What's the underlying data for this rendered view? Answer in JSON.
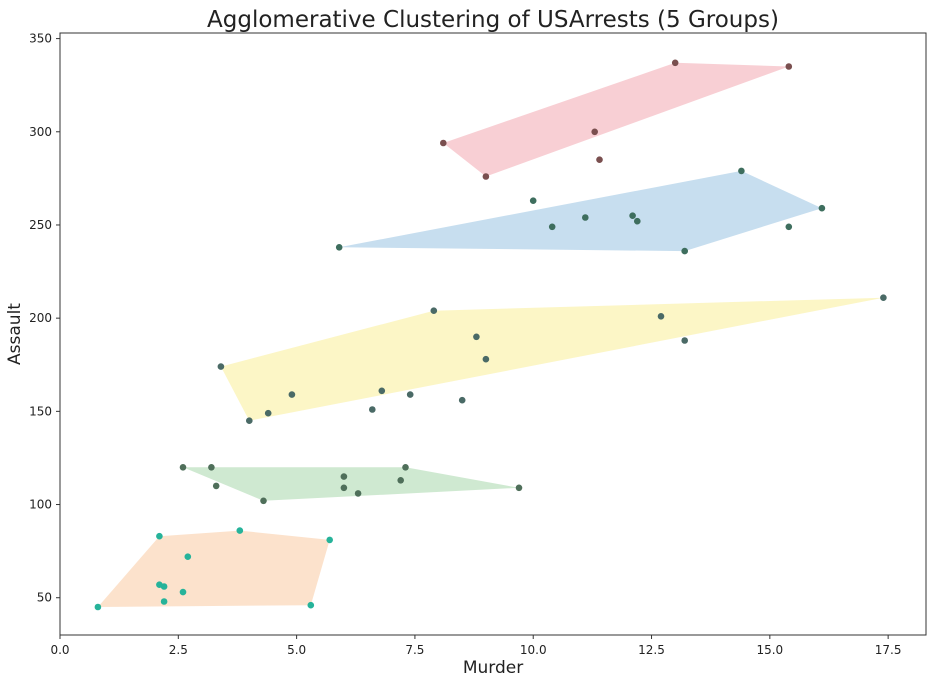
{
  "chart_data": {
    "type": "scatter",
    "title": "Agglomerative Clustering of USArrests (5 Groups)",
    "xlabel": "Murder",
    "ylabel": "Assault",
    "xlim": [
      0,
      18.3
    ],
    "ylim": [
      30,
      353
    ],
    "xticks": [
      0.0,
      2.5,
      5.0,
      7.5,
      10.0,
      12.5,
      15.0,
      17.5
    ],
    "xtick_labels": [
      "0.0",
      "2.5",
      "5.0",
      "7.5",
      "10.0",
      "12.5",
      "15.0",
      "17.5"
    ],
    "yticks": [
      50,
      100,
      150,
      200,
      250,
      300,
      350
    ],
    "ytick_labels": [
      "50",
      "100",
      "150",
      "200",
      "250",
      "300",
      "350"
    ],
    "grid": false,
    "hulls": [
      {
        "color": "#f4b6bd",
        "points": [
          [
            8.1,
            294
          ],
          [
            13.0,
            337
          ],
          [
            15.4,
            335
          ],
          [
            9.0,
            276
          ]
        ]
      },
      {
        "color": "#a9cce6",
        "points": [
          [
            5.9,
            238
          ],
          [
            14.4,
            279
          ],
          [
            16.1,
            259
          ],
          [
            13.2,
            236
          ]
        ]
      },
      {
        "color": "#fbf1a8",
        "points": [
          [
            3.4,
            174
          ],
          [
            7.9,
            204
          ],
          [
            17.4,
            211
          ],
          [
            4.0,
            145
          ]
        ]
      },
      {
        "color": "#b5ddb8",
        "points": [
          [
            2.6,
            120
          ],
          [
            7.3,
            120
          ],
          [
            9.7,
            109
          ],
          [
            4.3,
            102
          ]
        ]
      },
      {
        "color": "#fbd3b0",
        "points": [
          [
            2.1,
            83
          ],
          [
            3.8,
            86
          ],
          [
            5.7,
            81
          ],
          [
            5.3,
            46
          ],
          [
            0.8,
            45
          ]
        ]
      }
    ],
    "series": [
      {
        "color": "#7a4f4f",
        "points": [
          [
            13.0,
            337
          ],
          [
            15.4,
            335
          ],
          [
            11.3,
            300
          ],
          [
            8.1,
            294
          ],
          [
            11.4,
            285
          ],
          [
            9.0,
            276
          ]
        ]
      },
      {
        "color": "#3e6e5e",
        "points": [
          [
            14.4,
            279
          ],
          [
            10.0,
            263
          ],
          [
            16.1,
            259
          ],
          [
            11.1,
            254
          ],
          [
            12.1,
            255
          ],
          [
            12.2,
            252
          ],
          [
            10.4,
            249
          ],
          [
            15.4,
            249
          ],
          [
            5.9,
            238
          ],
          [
            13.2,
            236
          ]
        ]
      },
      {
        "color": "#4a6a66",
        "points": [
          [
            17.4,
            211
          ],
          [
            7.9,
            204
          ],
          [
            12.7,
            201
          ],
          [
            8.8,
            190
          ],
          [
            13.2,
            188
          ],
          [
            9.0,
            178
          ],
          [
            3.4,
            174
          ],
          [
            6.8,
            161
          ],
          [
            4.9,
            159
          ],
          [
            7.4,
            159
          ],
          [
            8.5,
            156
          ],
          [
            6.6,
            151
          ],
          [
            4.4,
            149
          ],
          [
            4.0,
            145
          ]
        ]
      },
      {
        "color": "#4f6f5a",
        "points": [
          [
            2.6,
            120
          ],
          [
            3.2,
            120
          ],
          [
            7.3,
            120
          ],
          [
            6.0,
            115
          ],
          [
            7.2,
            113
          ],
          [
            3.3,
            110
          ],
          [
            6.0,
            109
          ],
          [
            9.7,
            109
          ],
          [
            6.3,
            106
          ],
          [
            4.3,
            102
          ]
        ]
      },
      {
        "color": "#26b39a",
        "points": [
          [
            3.8,
            86
          ],
          [
            2.1,
            83
          ],
          [
            5.7,
            81
          ],
          [
            2.7,
            72
          ],
          [
            2.1,
            57
          ],
          [
            2.2,
            56
          ],
          [
            2.6,
            53
          ],
          [
            2.2,
            48
          ],
          [
            5.3,
            46
          ],
          [
            0.8,
            45
          ]
        ]
      }
    ]
  }
}
